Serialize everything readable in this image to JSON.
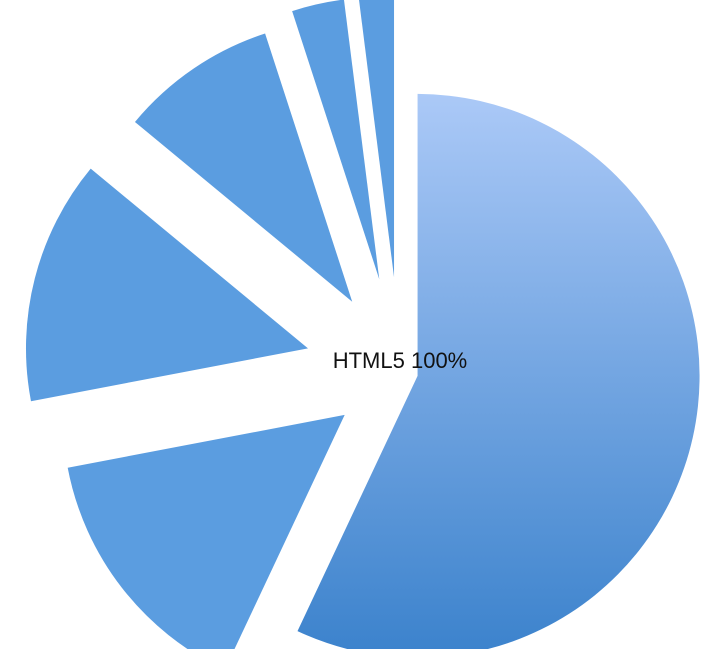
{
  "chart_data": {
    "type": "pie",
    "title": "HTML5 100%",
    "values": [
      57,
      15,
      14,
      9,
      3,
      2
    ],
    "colors": [
      [
        "#abc9f7",
        "#3b82cc"
      ],
      "#5b9de0",
      "#5b9de0",
      "#5b9de0",
      "#5b9de0",
      "#5b9de0"
    ]
  }
}
